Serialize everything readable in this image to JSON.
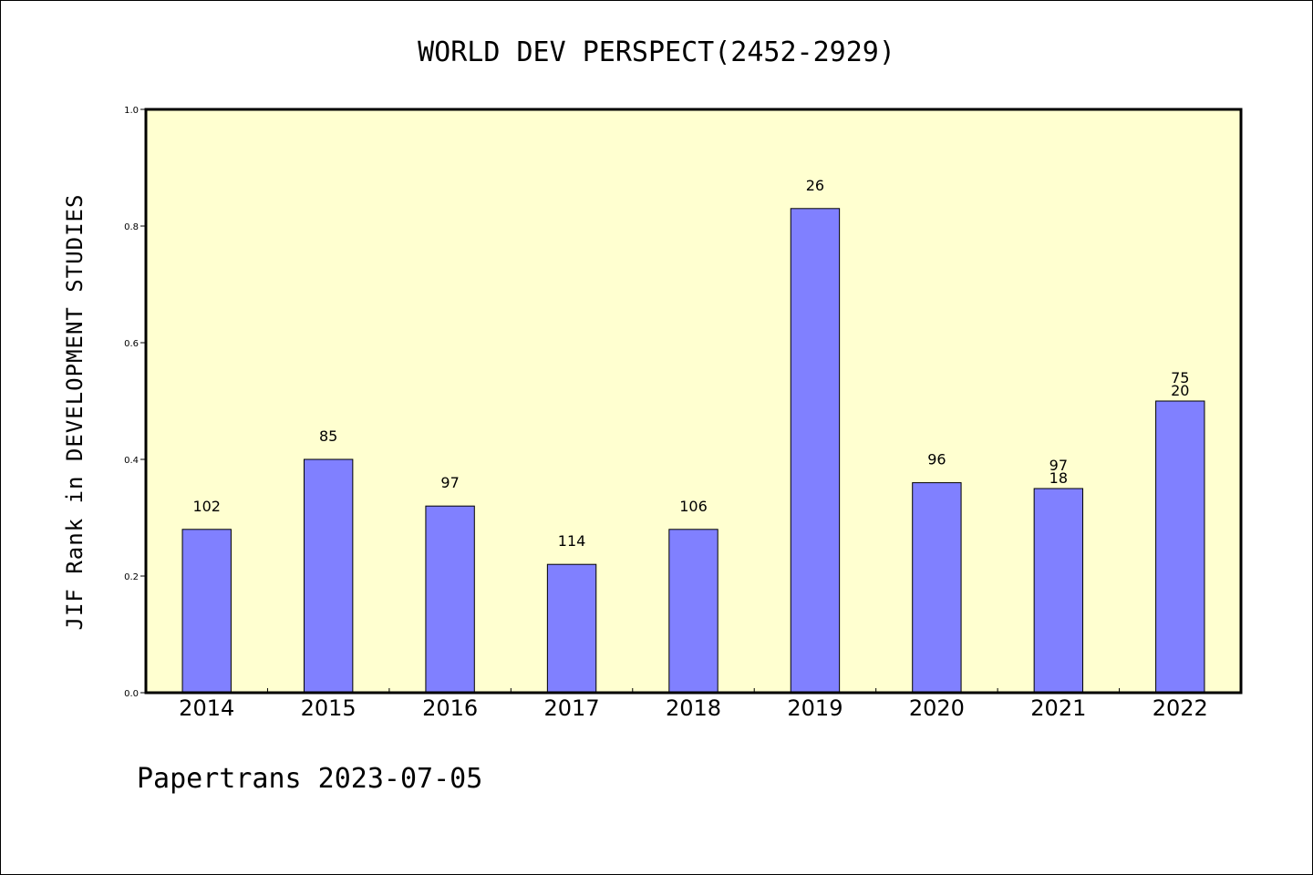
{
  "chart_data": {
    "type": "bar",
    "title": "WORLD DEV PERSPECT(2452-2929)",
    "xlabel": "",
    "ylabel": "JIF Rank in DEVELOPMENT STUDIES",
    "ylim": [
      0.0,
      1.0
    ],
    "yticks": [
      "0.0",
      "0.2",
      "0.4",
      "0.6",
      "0.8",
      "1.0"
    ],
    "categories": [
      "2014",
      "2015",
      "2016",
      "2017",
      "2018",
      "2019",
      "2020",
      "2021",
      "2022"
    ],
    "values": [
      0.28,
      0.4,
      0.32,
      0.22,
      0.28,
      0.83,
      0.36,
      0.35,
      0.5
    ],
    "bar_labels": [
      [
        "102"
      ],
      [
        "85"
      ],
      [
        "97"
      ],
      [
        "114"
      ],
      [
        "106"
      ],
      [
        "26"
      ],
      [
        "96"
      ],
      [
        "97",
        "18"
      ],
      [
        "75",
        "20"
      ]
    ],
    "grid": false,
    "colors": {
      "bar": "#8080ff",
      "plot_bg": "#ffffd0",
      "axis": "#000000"
    }
  },
  "footer": "Papertrans 2023-07-05"
}
